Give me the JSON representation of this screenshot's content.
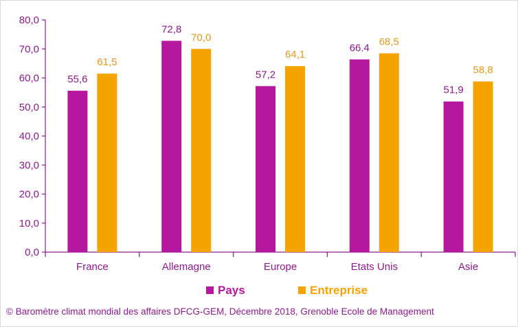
{
  "chart_data": {
    "type": "bar",
    "categories": [
      "France",
      "Allemagne",
      "Europe",
      "Etats Unis",
      "Asie"
    ],
    "series": [
      {
        "name": "Pays",
        "values": [
          55.6,
          72.8,
          57.2,
          66.4,
          51.9
        ],
        "labels": [
          "55,6",
          "72,8",
          "57,2",
          "66.4",
          "51,9"
        ],
        "color": "#b5179e"
      },
      {
        "name": "Entreprise",
        "values": [
          61.5,
          70.0,
          64.1,
          68.5,
          58.8
        ],
        "labels": [
          "61,5",
          "70,0",
          "64,1",
          "68,5",
          "58,8"
        ],
        "color": "#f4a300"
      }
    ],
    "ylim": [
      0,
      80
    ],
    "yticks": [
      "0,0",
      "10,0",
      "20,0",
      "30,0",
      "40,0",
      "50,0",
      "60,0",
      "70,0",
      "80,0"
    ],
    "grid": false,
    "legend_position": "bottom",
    "axis_color": "#8b1a8b"
  },
  "caption": "© Baromètre climat mondial des affaires DFCG-GEM, Décembre 2018, Grenoble Ecole de Management"
}
